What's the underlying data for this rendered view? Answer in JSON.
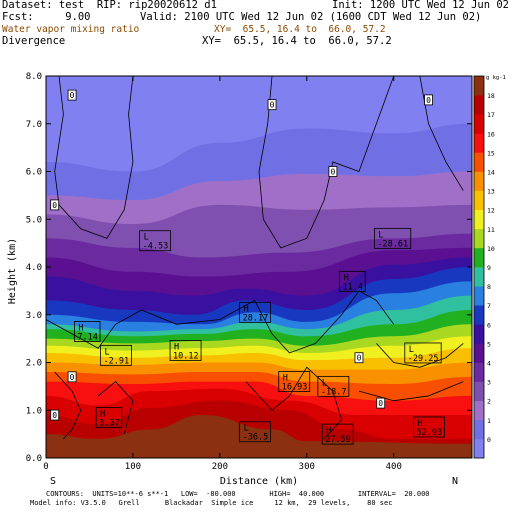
{
  "header": {
    "dataset": "Dataset: test  RIP: rip20020612 d1",
    "init": "Init: 1200 UTC Wed 12 Jun 02",
    "fcst": "Fcst:     9.00",
    "valid": "Valid: 2100 UTC Wed 12 Jun 02 (1600 CDT Wed 12 Jun 02)",
    "field1": "Water vapor mixing ratio",
    "xy1": "XY=  65.5, 16.4 to  66.0, 57.2",
    "field2": "Divergence",
    "xy2": "XY=  65.5, 16.4 to  66.0, 57.2"
  },
  "footer": {
    "contours": "CONTOURS:  UNITS=10**-6 s**-1   LOW=  -80.000        HIGH=  40.000        INTERVAL=  20.000",
    "model": "Model info: V3.5.0   Grell      Blackadar  Simple ice     12 km,  29 levels,    80 sec"
  },
  "colors": {
    "bands": [
      "#8080f0",
      "#7070e4",
      "#a070c8",
      "#8050b0",
      "#6b2aa0",
      "#5a1090",
      "#3a10a0",
      "#1838c0",
      "#2a80e0",
      "#30c0a0",
      "#20b020",
      "#a8d820",
      "#f0f020",
      "#f8c000",
      "#f89000",
      "#f85000",
      "#f81010",
      "#d80000",
      "#b80000",
      "#8b3010"
    ],
    "accent_field1": "#8b4a00"
  },
  "chart_data": {
    "type": "heatmap",
    "title": "Water vapor mixing ratio",
    "overlay": "Divergence",
    "xlabel": "Distance (km)",
    "ylabel": "Height (km)",
    "xlim": [
      0,
      490
    ],
    "ylim": [
      0,
      8.0
    ],
    "x_ticks": [
      0,
      100,
      200,
      300,
      400
    ],
    "y_ticks": [
      0.0,
      1.0,
      2.0,
      3.0,
      4.0,
      5.0,
      6.0,
      7.0,
      8.0
    ],
    "y_tick_labels": [
      "0.0",
      "1.0",
      "2.0",
      "3.0",
      "4.0",
      "5.0",
      "6.0",
      "7.0",
      "8.0"
    ],
    "endpoint_left": "S",
    "endpoint_right": "N",
    "colorbar": {
      "units": "g kg-1",
      "values": [
        0,
        1,
        2,
        3,
        4,
        5,
        6,
        7,
        8,
        9,
        10,
        11,
        12,
        13,
        14,
        15,
        16,
        17,
        18
      ],
      "labels": [
        "0",
        "1",
        "2",
        "3",
        "4",
        "5",
        "6",
        "7",
        "8",
        "9",
        "10",
        "11",
        "12",
        "13",
        "14",
        "15",
        "16",
        "17",
        "18"
      ]
    },
    "contour_labels": [
      {
        "x": 30,
        "y": 7.6,
        "text": "0"
      },
      {
        "x": 260,
        "y": 7.4,
        "text": "0"
      },
      {
        "x": 440,
        "y": 7.5,
        "text": "0"
      },
      {
        "x": 330,
        "y": 6.0,
        "text": "0"
      },
      {
        "x": 10,
        "y": 5.3,
        "text": "0"
      },
      {
        "x": 360,
        "y": 2.1,
        "text": "0"
      },
      {
        "x": 30,
        "y": 1.7,
        "text": "0"
      },
      {
        "x": 385,
        "y": 1.15,
        "text": "0"
      },
      {
        "x": 10,
        "y": 0.9,
        "text": "0"
      }
    ],
    "extrema": [
      {
        "x": 110,
        "y": 4.55,
        "kind": "L",
        "value": "-4.53"
      },
      {
        "x": 380,
        "y": 4.6,
        "kind": "L",
        "value": "-28.61"
      },
      {
        "x": 340,
        "y": 3.7,
        "kind": "H",
        "value": "11.4"
      },
      {
        "x": 225,
        "y": 3.05,
        "kind": "H",
        "value": "28.17"
      },
      {
        "x": 35,
        "y": 2.65,
        "kind": "H",
        "value": "7.14"
      },
      {
        "x": 65,
        "y": 2.15,
        "kind": "L",
        "value": "-2.91"
      },
      {
        "x": 145,
        "y": 2.25,
        "kind": "H",
        "value": "10.12"
      },
      {
        "x": 415,
        "y": 2.2,
        "kind": "L",
        "value": "-29.25"
      },
      {
        "x": 270,
        "y": 1.6,
        "kind": "H",
        "value": "16.93"
      },
      {
        "x": 315,
        "y": 1.5,
        "kind": "L",
        "value": "-18.7"
      },
      {
        "x": 60,
        "y": 0.85,
        "kind": "H",
        "value": "3.37"
      },
      {
        "x": 225,
        "y": 0.55,
        "kind": "L",
        "value": "-36.5"
      },
      {
        "x": 320,
        "y": 0.5,
        "kind": "H",
        "value": "27.59"
      },
      {
        "x": 425,
        "y": 0.65,
        "kind": "H",
        "value": "52.93"
      }
    ]
  }
}
